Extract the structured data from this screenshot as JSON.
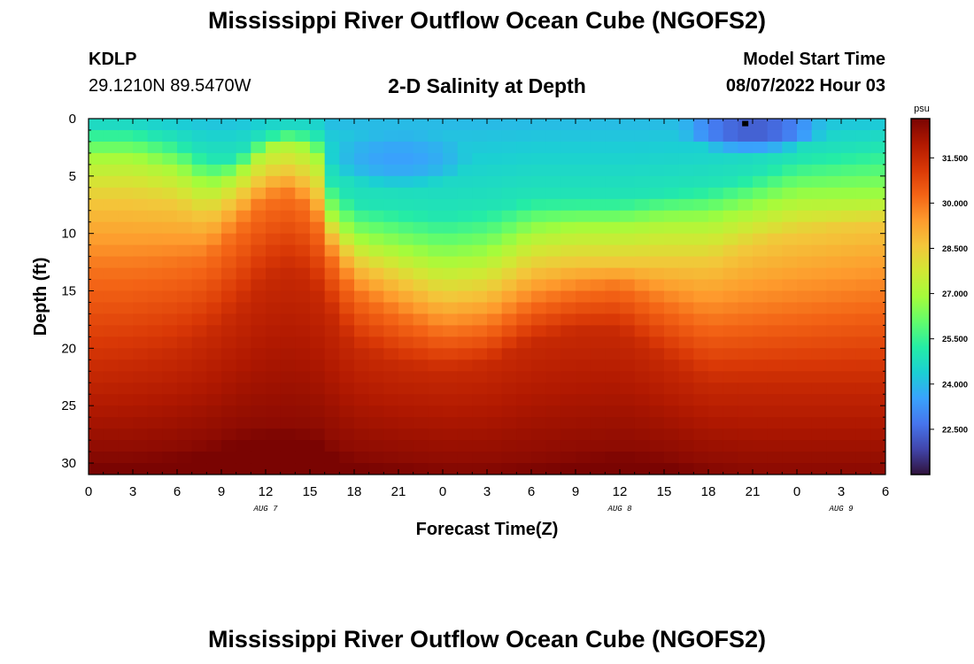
{
  "title": "Mississippi River Outflow Ocean Cube (NGOFS2)",
  "bottom_title": "Mississippi River Outflow Ocean Cube (NGOFS2)",
  "station": {
    "code": "KDLP",
    "coords": "29.1210N  89.5470W"
  },
  "subtitle": "2-D Salinity at Depth",
  "model_start": {
    "label": "Model Start Time",
    "value": "08/07/2022 Hour 03"
  },
  "chart_data": {
    "type": "heatmap",
    "xlabel": "Forecast Time(Z)",
    "ylabel": "Depth (ft)",
    "xlim": [
      0,
      54
    ],
    "ylim": [
      0,
      31
    ],
    "y_inverted": true,
    "x_ticks": [
      0,
      3,
      6,
      9,
      12,
      15,
      18,
      21,
      24,
      27,
      30,
      33,
      36,
      39,
      42,
      45,
      48,
      51,
      54
    ],
    "x_tick_labels": [
      "0",
      "3",
      "6",
      "9",
      "12",
      "15",
      "18",
      "21",
      "0",
      "3",
      "6",
      "9",
      "12",
      "15",
      "18",
      "21",
      "0",
      "3",
      "6"
    ],
    "y_ticks": [
      0,
      5,
      10,
      15,
      20,
      25,
      30
    ],
    "y_tick_labels": [
      "0",
      "5",
      "10",
      "15",
      "20",
      "25",
      "30"
    ],
    "day_labels": [
      {
        "hour": 12,
        "text": "AUG 7"
      },
      {
        "hour": 36,
        "text": "AUG 8"
      },
      {
        "hour": 51,
        "text": "AUG 9"
      }
    ],
    "colorbar": {
      "unit": "psu",
      "min": 21.0,
      "max": 32.8,
      "ticks": [
        22.5,
        24.0,
        25.5,
        27.0,
        28.5,
        30.0,
        31.5
      ],
      "tick_labels": [
        "22.500",
        "24.000",
        "25.500",
        "27.000",
        "28.500",
        "30.000",
        "31.500"
      ],
      "colormap": [
        "#30123b",
        "#4145ab",
        "#4675ed",
        "#39a2fc",
        "#1bcfd4",
        "#24eca6",
        "#61fc6c",
        "#a4fc3b",
        "#d1e834",
        "#f3c63a",
        "#fe9b2d",
        "#f36315",
        "#d93806",
        "#b11901",
        "#7a0402"
      ]
    },
    "isohaline_depth_ft": {
      "hours": [
        0,
        3,
        6,
        8,
        10,
        12,
        14,
        15.5,
        16.5,
        18,
        21,
        24,
        27,
        30,
        33,
        36,
        39,
        42,
        45,
        48,
        51,
        54
      ],
      "s25": [
        1,
        1,
        2,
        3.5,
        3.5,
        1.5,
        1,
        1.5,
        5.5,
        7.5,
        8,
        8.5,
        8,
        7,
        7,
        7,
        6.5,
        6,
        5,
        3.5,
        3,
        2.5
      ],
      "s27": [
        3.5,
        3.5,
        4.5,
        6,
        5,
        2.5,
        2,
        3.5,
        8.5,
        10.5,
        11.5,
        12.5,
        12,
        10,
        9.5,
        9.5,
        9,
        9,
        8,
        7,
        7,
        7
      ],
      "s28p5": [
        7,
        7,
        7.5,
        8.5,
        7,
        5,
        4.5,
        6.5,
        10,
        12.5,
        14,
        15.5,
        15,
        13,
        12.5,
        12.5,
        12.5,
        12.5,
        11,
        10,
        9.5,
        9
      ],
      "s30": [
        13,
        13,
        12.5,
        12,
        9.5,
        7,
        6.5,
        9,
        12,
        15,
        17,
        18.5,
        18,
        16,
        15,
        14.5,
        16,
        17.5,
        17,
        16.5,
        16,
        15.5
      ],
      "s31p5": [
        22,
        21.5,
        20.5,
        19,
        17,
        14,
        13,
        15,
        17,
        20,
        21.5,
        22,
        21.5,
        19.5,
        18.5,
        18.5,
        21,
        23,
        23,
        23,
        23,
        23
      ],
      "s32p5": [
        29,
        29,
        28.5,
        28,
        27,
        26.5,
        26.5,
        27,
        28,
        29,
        29.5,
        30,
        30,
        29.5,
        29,
        28.5,
        29,
        30,
        30.5,
        30.5,
        30.5,
        30.5
      ]
    },
    "low_salinity_cores": [
      {
        "hour": 21,
        "depth_ft": 3.5,
        "value": 23.5,
        "h_radius": 5,
        "d_radius": 2.5
      },
      {
        "hour": 45,
        "depth_ft": 1,
        "value": 22.2,
        "h_radius": 5,
        "d_radius": 2
      }
    ],
    "marker": {
      "hour": 44.5,
      "depth_ft": 0.2
    }
  }
}
